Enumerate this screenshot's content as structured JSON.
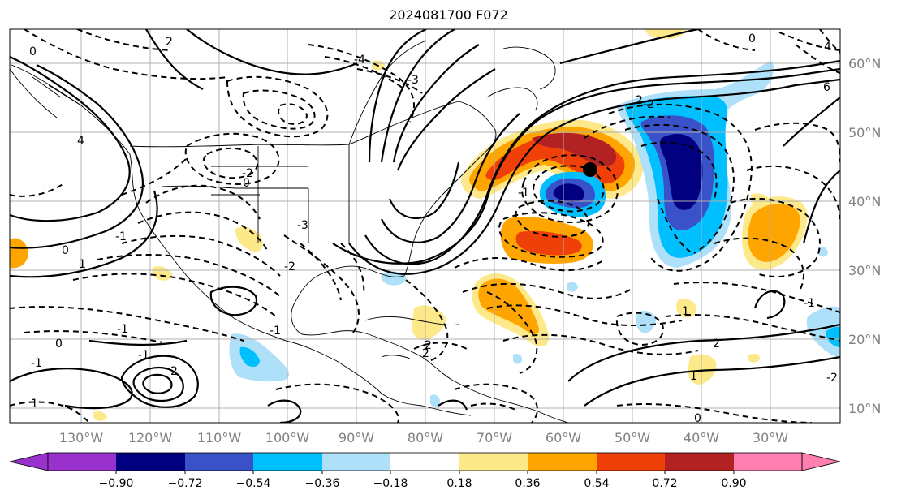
{
  "title": "2024081700 F072",
  "map": {
    "lat_labels": [
      "60°N",
      "50°N",
      "40°N",
      "30°N",
      "20°N",
      "10°N"
    ],
    "lon_labels": [
      "130°W",
      "120°W",
      "110°W",
      "100°W",
      "90°W",
      "80°W",
      "70°W",
      "60°W",
      "50°W",
      "40°W",
      "30°W"
    ],
    "contour_labels": [
      "0",
      "2",
      "-2",
      "4",
      "0",
      "-2",
      "-3",
      "-1",
      "1",
      "2",
      "-1",
      "0",
      "-1",
      "1",
      "-2",
      "2",
      "-1",
      "0",
      "-1",
      "1",
      "0",
      "1",
      "2",
      "-1",
      "-2",
      "4",
      "-4",
      "6",
      "2",
      "-2",
      "-3",
      "-1",
      "0"
    ],
    "marker": "storm-center-dot"
  },
  "colorbar": {
    "tick_labels": [
      "−0.90",
      "−0.72",
      "−0.54",
      "−0.36",
      "−0.18",
      "0.18",
      "0.36",
      "0.54",
      "0.72",
      "0.90"
    ],
    "colors": [
      "#9932cc",
      "#000080",
      "#3a52c9",
      "#00bfff",
      "#afe0fa",
      "#ffffff",
      "#fde98a",
      "#ffa500",
      "#f0400a",
      "#b22222",
      "#ff80b0"
    ]
  }
}
